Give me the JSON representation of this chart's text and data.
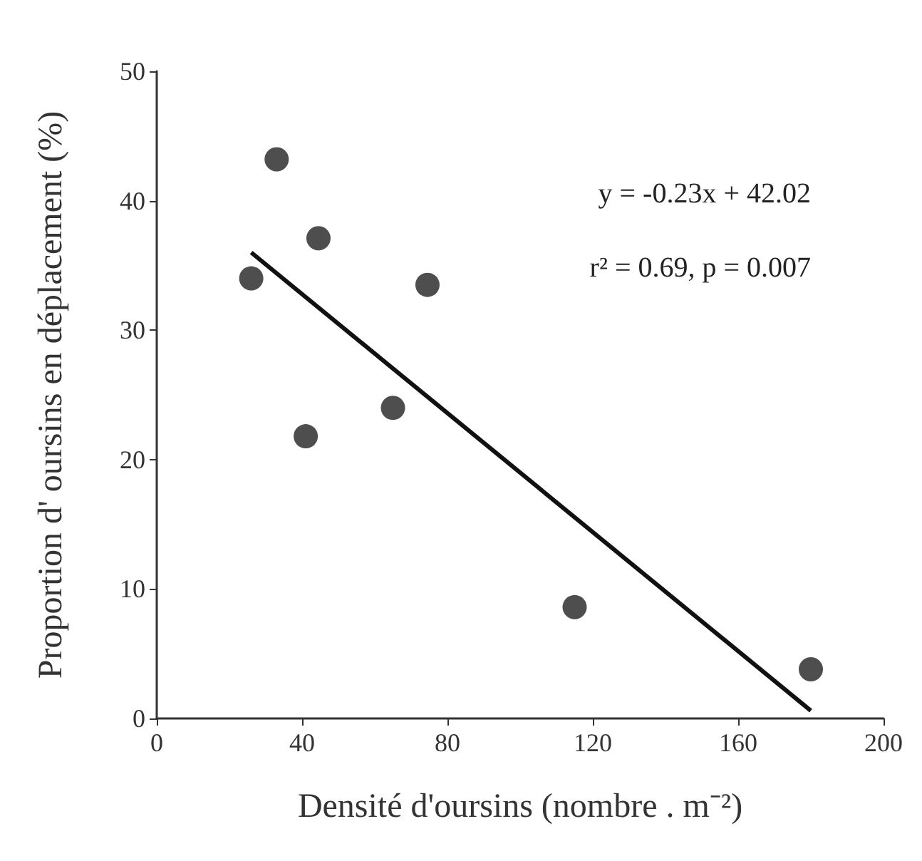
{
  "chart_data": {
    "type": "scatter",
    "xlabel": "Densité d'oursins (nombre . m⁻²)",
    "ylabel": "Proportion d' oursins en déplacement (%)",
    "annotations": [
      "y = -0.23x + 42.02",
      "r² = 0.69, p = 0.007"
    ],
    "series": [
      {
        "color": "#222222",
        "x": [
          26,
          33,
          44.5,
          74.5,
          41,
          65,
          115,
          180
        ],
        "values": [
          34,
          43.2,
          37.1,
          33.5,
          21.8,
          24,
          8.6,
          3.8
        ],
        "marker": "circle"
      },
      {
        "type": "line",
        "color": "#111111",
        "x": [
          26,
          180
        ],
        "values": [
          36,
          0.6
        ],
        "marker": "none",
        "line_style": "solid"
      }
    ],
    "xlim": [
      0,
      200
    ],
    "xticks": [
      0,
      40,
      80,
      120,
      160,
      200
    ],
    "ylim": [
      0,
      50
    ],
    "yticks": [
      0,
      10,
      20,
      30,
      40,
      50
    ],
    "grid": false
  }
}
